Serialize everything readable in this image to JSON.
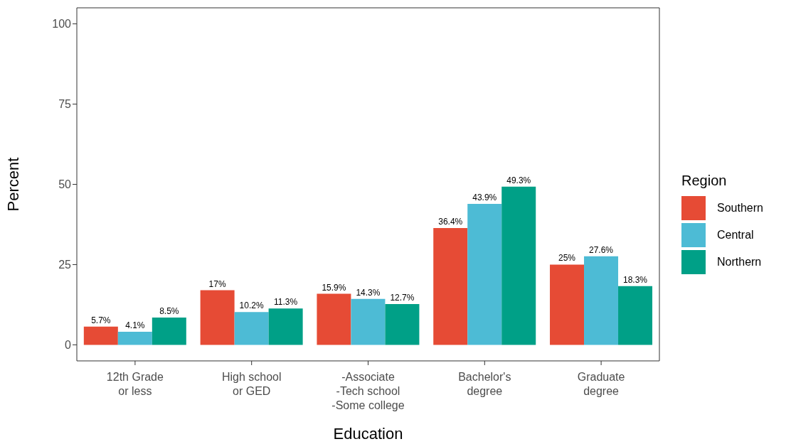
{
  "chart_data": {
    "type": "bar",
    "xlabel": "Education",
    "ylabel": "Percent",
    "legend_title": "Region",
    "legend": "right",
    "grid": false,
    "categories": [
      "12th Grade\nor less",
      "High school\nor GED",
      "-Associate\n-Tech school\n-Some college",
      "Bachelor's\ndegree",
      "Graduate\ndegree"
    ],
    "ylim": [
      -5,
      105
    ],
    "yticks": [
      0,
      25,
      50,
      75,
      100
    ],
    "series": [
      {
        "name": "Southern",
        "color": "#e64b35",
        "values": [
          5.7,
          17,
          15.9,
          36.4,
          25
        ],
        "value_labels": [
          "5.7%",
          "17%",
          "15.9%",
          "36.4%",
          "25%"
        ]
      },
      {
        "name": "Central",
        "color": "#4dbbd5",
        "values": [
          4.1,
          10.2,
          14.3,
          43.9,
          27.6
        ],
        "value_labels": [
          "4.1%",
          "10.2%",
          "14.3%",
          "43.9%",
          "27.6%"
        ]
      },
      {
        "name": "Northern",
        "color": "#00a087",
        "values": [
          8.5,
          11.3,
          12.7,
          49.3,
          18.3
        ],
        "value_labels": [
          "8.5%",
          "11.3%",
          "12.7%",
          "49.3%",
          "18.3%"
        ]
      }
    ]
  }
}
